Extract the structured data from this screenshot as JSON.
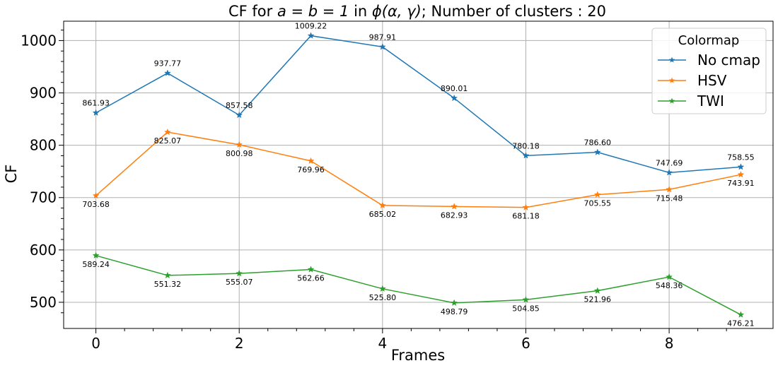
{
  "chart_data": {
    "type": "line",
    "title_prefix": "CF for ",
    "title_math": "a = b = 1",
    "title_middle": " in ",
    "title_math2": "ϕ(α, γ)",
    "title_suffix": "; Number of clusters : 20",
    "xlabel": "Frames",
    "ylabel": "CF",
    "x": [
      0,
      1,
      2,
      3,
      4,
      5,
      6,
      7,
      8,
      9
    ],
    "xlim": [
      -0.45,
      9.45
    ],
    "ylim": [
      450,
      1037
    ],
    "xticks": [
      "0",
      "2",
      "4",
      "6",
      "8"
    ],
    "xtick_values": [
      0,
      2,
      4,
      6,
      8
    ],
    "yticks": [
      "500",
      "600",
      "700",
      "800",
      "900",
      "1000"
    ],
    "ytick_values": [
      500,
      600,
      700,
      800,
      900,
      1000
    ],
    "grid": true,
    "marker": "star",
    "legend": {
      "title": "Colormap",
      "placement": "top-right"
    },
    "series": [
      {
        "name": "No cmap",
        "color": "#1f77b4",
        "label_position": "above",
        "values": [
          861.93,
          937.77,
          857.58,
          1009.22,
          987.91,
          890.01,
          780.18,
          786.6,
          747.69,
          758.55
        ],
        "labels": [
          "861.93",
          "937.77",
          "857.58",
          "1009.22",
          "987.91",
          "890.01",
          "780.18",
          "786.60",
          "747.69",
          "758.55"
        ]
      },
      {
        "name": "HSV",
        "color": "#ff7f0e",
        "label_position": "below",
        "values": [
          703.68,
          825.07,
          800.98,
          769.96,
          685.02,
          682.93,
          681.18,
          705.55,
          715.48,
          743.91
        ],
        "labels": [
          "703.68",
          "825.07",
          "800.98",
          "769.96",
          "685.02",
          "682.93",
          "681.18",
          "705.55",
          "715.48",
          "743.91"
        ]
      },
      {
        "name": "TWI",
        "color": "#2ca02c",
        "label_position": "below",
        "values": [
          589.24,
          551.32,
          555.07,
          562.66,
          525.8,
          498.79,
          504.85,
          521.96,
          548.36,
          476.21
        ],
        "labels": [
          "589.24",
          "551.32",
          "555.07",
          "562.66",
          "525.80",
          "498.79",
          "504.85",
          "521.96",
          "548.36",
          "476.21"
        ]
      }
    ]
  }
}
